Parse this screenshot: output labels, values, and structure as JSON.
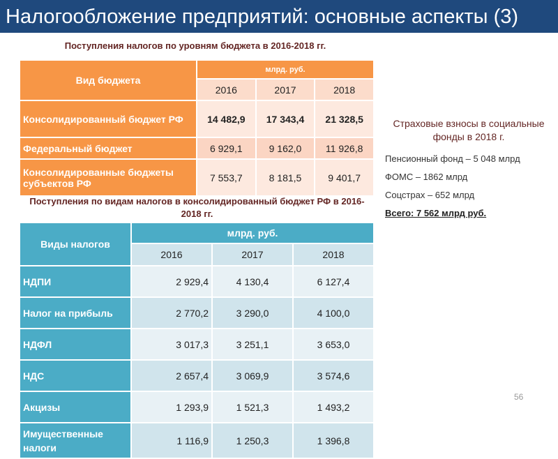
{
  "title": "Налогообложение предприятий: основные аспекты (3)",
  "table1": {
    "caption": "Поступления налогов по уровням бюджета в 2016-2018 гг.",
    "col_header": "Вид бюджета",
    "unit": "млрд. руб.",
    "years": [
      "2016",
      "2017",
      "2018"
    ],
    "rows": [
      {
        "label": "Консолидированный бюджет РФ",
        "values": [
          "14 482,9",
          "17 343,4",
          "21 328,5"
        ]
      },
      {
        "label": "Федеральный бюджет",
        "values": [
          "6 929,1",
          "9 162,0",
          "11 926,8"
        ]
      },
      {
        "label": "Консолидированные бюджеты субъектов РФ",
        "values": [
          "7 553,7",
          "8 181,5",
          "9 401,7"
        ]
      }
    ]
  },
  "table2": {
    "caption": "Поступления по видам налогов в консолидированный бюджет РФ в 2016-2018 гг.",
    "col_header": "Виды налогов",
    "unit": "млрд. руб.",
    "years": [
      "2016",
      "2017",
      "2018"
    ],
    "rows": [
      {
        "label": "НДПИ",
        "values": [
          "2 929,4",
          "4 130,4",
          "6 127,4"
        ]
      },
      {
        "label": "Налог на прибыль",
        "values": [
          "2 770,2",
          "3 290,0",
          "4 100,0"
        ]
      },
      {
        "label": "НДФЛ",
        "values": [
          "3 017,3",
          "3 251,1",
          "3 653,0"
        ]
      },
      {
        "label": "НДС",
        "values": [
          "2 657,4",
          "3 069,9",
          "3 574,6"
        ]
      },
      {
        "label": "Акцизы",
        "values": [
          "1 293,9",
          "1 521,3",
          "1 493,2"
        ]
      },
      {
        "label": "Имущественные налоги",
        "values": [
          "1 116,9",
          "1 250,3",
          "1 396,8"
        ]
      }
    ]
  },
  "insurance": {
    "heading": "Страховые взносы в социальные фонды в 2018 г.",
    "items": [
      "Пенсионный фонд – 5 048 млрд",
      "ФОМС – 1862 млрд",
      "Соцстрах – 652 млрд"
    ],
    "total": "Всего: 7 562 млрд  руб."
  },
  "page_number": "56"
}
